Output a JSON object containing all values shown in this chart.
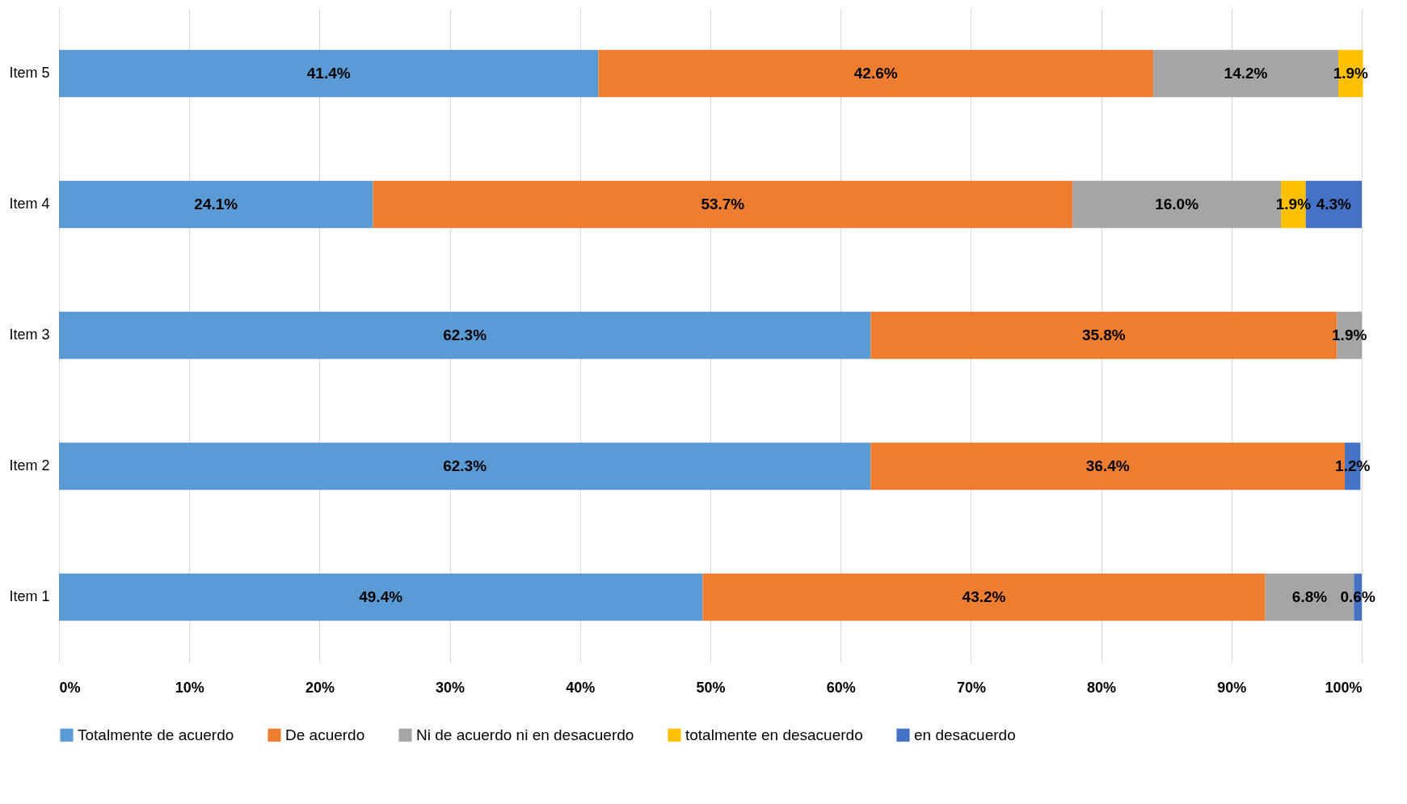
{
  "chart_data": {
    "type": "bar",
    "orientation": "horizontal",
    "stacked": true,
    "categories": [
      "Item 5",
      "Item 4",
      "Item 3",
      "Item 2",
      "Item 1"
    ],
    "series": [
      {
        "name": "Totalmente de acuerdo",
        "color": "#5b9bd5",
        "values": [
          41.4,
          24.1,
          62.3,
          62.3,
          49.4
        ],
        "value_labels": [
          "41.4%",
          "24.1%",
          "62.3%",
          "62.3%",
          "49.4%"
        ]
      },
      {
        "name": "De acuerdo",
        "color": "#ed7d31",
        "values": [
          42.6,
          53.7,
          35.8,
          36.4,
          43.2
        ],
        "value_labels": [
          "42.6%",
          "53.7%",
          "35.8%",
          "36.4%",
          "43.2%"
        ]
      },
      {
        "name": "Ni de acuerdo ni en desacuerdo",
        "color": "#a5a5a5",
        "values": [
          14.2,
          16.0,
          1.9,
          null,
          6.8
        ],
        "value_labels": [
          "14.2%",
          "16.0%",
          "1.9%",
          null,
          "6.8%"
        ]
      },
      {
        "name": "totalmente en desacuerdo",
        "color": "#ffc000",
        "values": [
          1.9,
          1.9,
          null,
          null,
          null
        ],
        "value_labels": [
          "1.9%",
          "1.9%",
          null,
          null,
          null
        ]
      },
      {
        "name": "en desacuerdo",
        "color": "#4472c4",
        "values": [
          null,
          4.3,
          null,
          1.2,
          0.6
        ],
        "value_labels": [
          null,
          "4.3%",
          null,
          "1.2%",
          "0.6%"
        ]
      }
    ],
    "xlim": [
      0,
      100
    ],
    "xticks": [
      {
        "value": 0,
        "label": "0%"
      },
      {
        "value": 10,
        "label": "10%"
      },
      {
        "value": 20,
        "label": "20%"
      },
      {
        "value": 30,
        "label": "30%"
      },
      {
        "value": 40,
        "label": "40%"
      },
      {
        "value": 50,
        "label": "50%"
      },
      {
        "value": 60,
        "label": "60%"
      },
      {
        "value": 70,
        "label": "70%"
      },
      {
        "value": 80,
        "label": "80%"
      },
      {
        "value": 90,
        "label": "90%"
      },
      {
        "value": 100,
        "label": "100%"
      }
    ],
    "grid": "x",
    "legend": "bottom"
  }
}
